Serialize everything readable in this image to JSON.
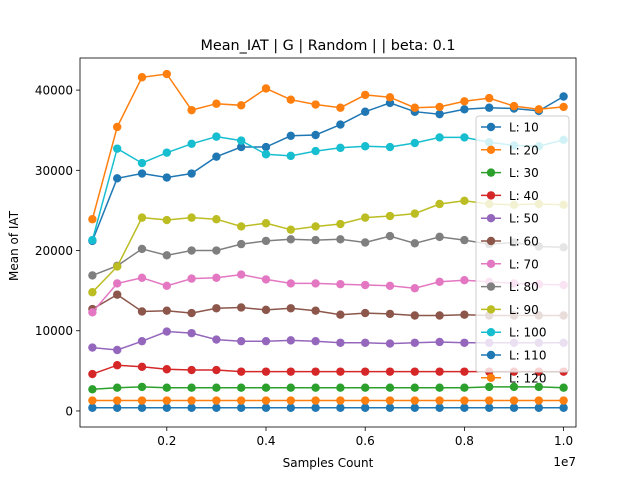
{
  "chart_data": {
    "type": "line",
    "title": "Mean_IAT  | G | Random |  | beta: 0.1",
    "xlabel": "Samples Count",
    "ylabel": "Mean of IAT",
    "x_offset_label": "1e7",
    "xlim": [
      0.025,
      1.025
    ],
    "ylim": [
      -2000,
      44000
    ],
    "x_ticks": [
      0.2,
      0.4,
      0.6,
      0.8,
      1.0
    ],
    "x_tick_labels": [
      "0.2",
      "0.4",
      "0.6",
      "0.8",
      "1.0"
    ],
    "y_ticks": [
      0,
      10000,
      20000,
      30000,
      40000
    ],
    "y_tick_labels": [
      "0",
      "10000",
      "20000",
      "30000",
      "40000"
    ],
    "grid": false,
    "legend_position": "center-right",
    "x": [
      0.05,
      0.1,
      0.15,
      0.2,
      0.25,
      0.3,
      0.35,
      0.4,
      0.45,
      0.5,
      0.55,
      0.6,
      0.65,
      0.7,
      0.75,
      0.8,
      0.85,
      0.9,
      0.95,
      1.0
    ],
    "series": [
      {
        "name": "L: 10",
        "color": "#1f77b4",
        "values": [
          21200,
          29000,
          29600,
          29100,
          29600,
          31700,
          32900,
          32900,
          34300,
          34400,
          35700,
          37300,
          38400,
          37300,
          37000,
          37600,
          37800,
          37700,
          37400,
          39200
        ]
      },
      {
        "name": "L: 20",
        "color": "#ff7f0e",
        "values": [
          23900,
          35400,
          41600,
          42000,
          37500,
          38300,
          38100,
          40200,
          38800,
          38200,
          37800,
          39400,
          39100,
          37800,
          37900,
          38600,
          39000,
          38000,
          37600,
          37900
        ]
      },
      {
        "name": "L: 30",
        "color": "#2ca02c",
        "values": [
          2700,
          2900,
          3000,
          2900,
          2900,
          2900,
          2900,
          2900,
          2900,
          2900,
          2900,
          2900,
          2900,
          2900,
          2900,
          2900,
          3000,
          3000,
          3000,
          2900
        ]
      },
      {
        "name": "L: 40",
        "color": "#d62728",
        "values": [
          4600,
          5700,
          5500,
          5200,
          5100,
          5100,
          4900,
          4900,
          4900,
          4900,
          4900,
          4900,
          4900,
          4900,
          4900,
          4900,
          4900,
          4900,
          4900,
          4900
        ]
      },
      {
        "name": "L: 50",
        "color": "#9467bd",
        "values": [
          7900,
          7600,
          8700,
          9900,
          9700,
          8900,
          8700,
          8700,
          8800,
          8700,
          8500,
          8500,
          8400,
          8500,
          8600,
          8500,
          8500,
          8500,
          8500,
          8500
        ]
      },
      {
        "name": "L: 60",
        "color": "#8c564b",
        "values": [
          12700,
          14500,
          12400,
          12500,
          12200,
          12800,
          12900,
          12600,
          12800,
          12500,
          12000,
          12200,
          12100,
          11900,
          11900,
          12000,
          11900,
          11900,
          11900,
          11900
        ]
      },
      {
        "name": "L: 70",
        "color": "#e377c2",
        "values": [
          12300,
          15900,
          16600,
          15600,
          16500,
          16600,
          17000,
          16400,
          15900,
          15900,
          15800,
          15700,
          15600,
          15300,
          16100,
          16300,
          16100,
          15900,
          15800,
          15700
        ]
      },
      {
        "name": "L: 80",
        "color": "#7f7f7f",
        "values": [
          16900,
          18100,
          20200,
          19400,
          20000,
          20000,
          20800,
          21200,
          21400,
          21300,
          21400,
          21000,
          21800,
          20900,
          21700,
          21300,
          20800,
          21000,
          20500,
          20400
        ]
      },
      {
        "name": "L: 90",
        "color": "#bcbd22",
        "values": [
          14800,
          18000,
          24100,
          23800,
          24100,
          23900,
          23000,
          23400,
          22600,
          23000,
          23300,
          24100,
          24300,
          24600,
          25800,
          26200,
          25800,
          25700,
          25800,
          25700
        ]
      },
      {
        "name": "L: 100",
        "color": "#17becf",
        "values": [
          21300,
          32700,
          30900,
          32200,
          33300,
          34200,
          33700,
          32000,
          31800,
          32400,
          32800,
          33000,
          32900,
          33400,
          34100,
          34100,
          33500,
          33100,
          33000,
          33800
        ]
      },
      {
        "name": "L: 110",
        "color": "#1f77b4",
        "values": [
          400,
          400,
          400,
          400,
          400,
          400,
          400,
          400,
          400,
          400,
          400,
          400,
          400,
          400,
          400,
          400,
          400,
          400,
          400,
          400
        ]
      },
      {
        "name": "L: 120",
        "color": "#ff7f0e",
        "values": [
          1300,
          1300,
          1300,
          1300,
          1300,
          1300,
          1300,
          1300,
          1300,
          1300,
          1300,
          1300,
          1300,
          1300,
          1300,
          1300,
          1300,
          1300,
          1300,
          1300
        ]
      }
    ]
  }
}
